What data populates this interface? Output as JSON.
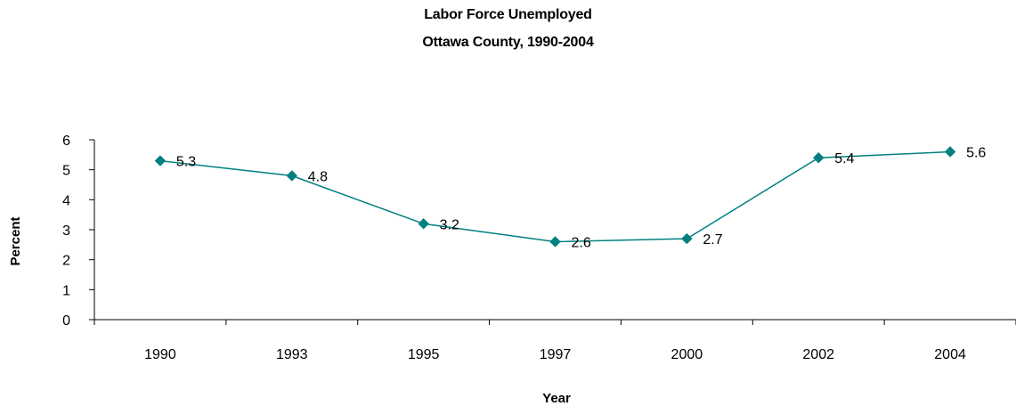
{
  "chart_data": {
    "type": "line",
    "title": "Labor Force Unemployed",
    "subtitle": "Ottawa County, 1990-2004",
    "xlabel": "Year",
    "ylabel": "Percent",
    "categories": [
      "1990",
      "1993",
      "1995",
      "1997",
      "2000",
      "2002",
      "2004"
    ],
    "values": [
      5.3,
      4.8,
      3.2,
      2.6,
      2.7,
      5.4,
      5.6
    ],
    "data_labels": [
      "5.3",
      "4.8",
      "3.2",
      "2.6",
      "2.7",
      "5.4",
      "5.6"
    ],
    "ylim": [
      0,
      6
    ],
    "yticks": [
      0,
      1,
      2,
      3,
      4,
      5,
      6
    ],
    "grid": false,
    "legend": "none",
    "marker": "diamond",
    "line_color": "#008080"
  }
}
